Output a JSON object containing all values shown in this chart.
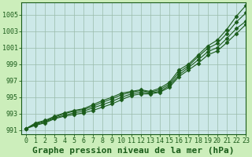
{
  "title": "Graphe pression niveau de la mer (hPa)",
  "background_color": "#cceebb",
  "plot_background": "#cce8e8",
  "grid_color": "#99bbaa",
  "line_color": "#1a5c1a",
  "xlim": [
    -0.5,
    23
  ],
  "ylim": [
    990.5,
    1006.5
  ],
  "xticks": [
    0,
    1,
    2,
    3,
    4,
    5,
    6,
    7,
    8,
    9,
    10,
    11,
    12,
    13,
    14,
    15,
    16,
    17,
    18,
    19,
    20,
    21,
    22,
    23
  ],
  "yticks": [
    991,
    993,
    995,
    997,
    999,
    1001,
    1003,
    1005
  ],
  "series": [
    [
      991.2,
      991.9,
      992.2,
      992.7,
      993.1,
      993.4,
      993.6,
      994.1,
      994.6,
      995.0,
      995.5,
      995.7,
      995.9,
      995.7,
      996.1,
      996.8,
      998.3,
      999.0,
      1000.1,
      1001.2,
      1001.9,
      1003.2,
      1004.8,
      1006.1
    ],
    [
      991.2,
      991.8,
      992.1,
      992.6,
      993.0,
      993.3,
      993.5,
      993.9,
      994.4,
      994.8,
      995.3,
      995.6,
      995.8,
      995.6,
      995.9,
      996.6,
      998.0,
      998.8,
      999.9,
      1000.9,
      1001.5,
      1002.7,
      1004.1,
      1005.2
    ],
    [
      991.2,
      991.7,
      992.0,
      992.5,
      992.8,
      993.1,
      993.3,
      993.7,
      994.1,
      994.5,
      995.0,
      995.4,
      995.6,
      995.5,
      995.7,
      996.4,
      997.7,
      998.6,
      999.5,
      1000.5,
      1001.0,
      1002.1,
      1003.3,
      1004.2
    ],
    [
      991.2,
      991.6,
      991.9,
      992.4,
      992.7,
      992.9,
      993.1,
      993.4,
      993.8,
      994.2,
      994.7,
      995.2,
      995.4,
      995.4,
      995.6,
      996.2,
      997.5,
      998.3,
      999.1,
      1000.1,
      1000.6,
      1001.6,
      1002.7,
      1003.8
    ]
  ],
  "marker": "D",
  "marker_size": 2.5,
  "linewidth": 0.8,
  "title_fontsize": 8,
  "tick_fontsize": 6
}
